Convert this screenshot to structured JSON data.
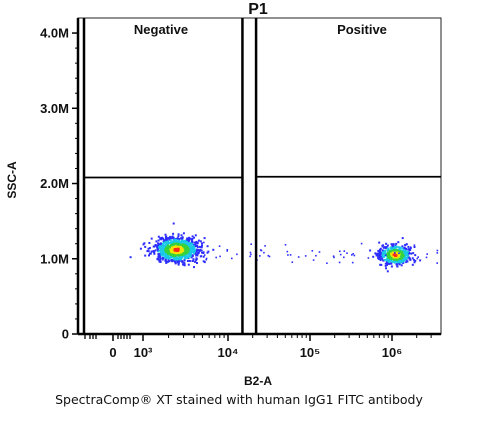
{
  "caption": "SpectraComp® XT stained with human IgG1 FITC antibody",
  "chart_data": {
    "type": "scatter",
    "title": "P1",
    "xlabel": "B2-A",
    "ylabel": "SSC-A",
    "x_scale": "biexponential",
    "x_tick_labels": [
      "0",
      "10³",
      "10⁴",
      "10⁵",
      "10⁶"
    ],
    "x_ticks": [
      0,
      1000,
      10000,
      100000,
      1000000
    ],
    "y_tick_labels": [
      "0",
      "1.0M",
      "2.0M",
      "3.0M",
      "4.0M"
    ],
    "y_ticks": [
      0,
      1000000,
      2000000,
      3000000,
      4000000
    ],
    "ylim": [
      0,
      4200000
    ],
    "grid": false,
    "gates": [
      {
        "label": "Negative",
        "x_max": 15000,
        "y_divider": 2080000
      },
      {
        "label": "Positive",
        "x_min": 22000,
        "y_divider": 2090000
      }
    ],
    "populations": [
      {
        "label": "Negative",
        "center_x": 2500,
        "center_y": 1120000
      },
      {
        "label": "Positive",
        "center_x": 1100000,
        "center_y": 1050000
      }
    ]
  }
}
